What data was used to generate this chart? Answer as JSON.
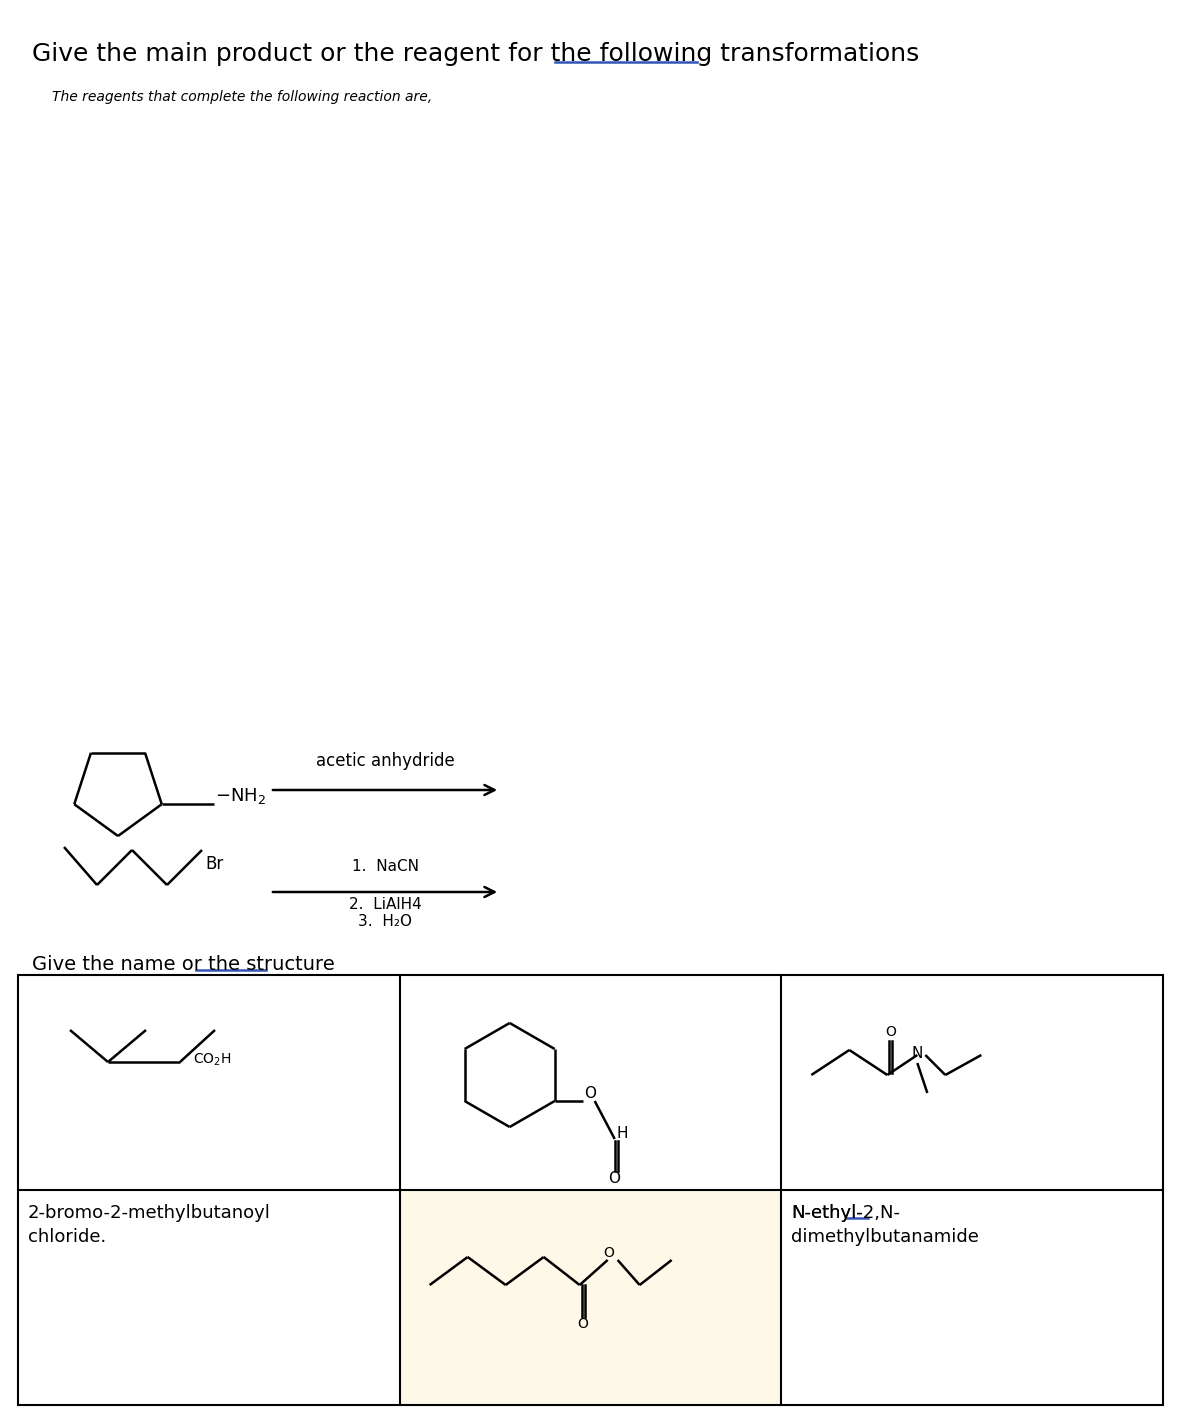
{
  "title_part1": "Give the main product or the reagent for the following ",
  "title_underlined": "transformations",
  "subtitle": "The reagents that complete the following reaction are,",
  "reaction1_reagent": "acetic anhydride",
  "reaction2_reagents_line1": "1.  NaCN",
  "reaction2_reagents_line2": "2.  LiAlH4",
  "reaction2_reagents_line3": "3.  H₂O",
  "section2_part1": "Give the name or the ",
  "section2_underlined": "structure",
  "cell1_line1": "2-bromo-2-methylbutanoyl",
  "cell1_line2": "chloride.",
  "cell3_line1": "N-ethyl-",
  "cell3_underline_start": "N-ethyl-",
  "cell3_underlined": "2,N",
  "cell3_line1_rest": "-",
  "cell3_line2": "dimethylbutanamide",
  "bg_color": "#ffffff",
  "text_color": "#000000",
  "underline_color": "#3355bb",
  "highlight_color": "#fdf8e8",
  "title_fontsize": 18,
  "subtitle_fontsize": 10,
  "reaction_label_fontsize": 12,
  "section2_fontsize": 14,
  "cell_text_fontsize": 13,
  "chem_lw": 1.8
}
